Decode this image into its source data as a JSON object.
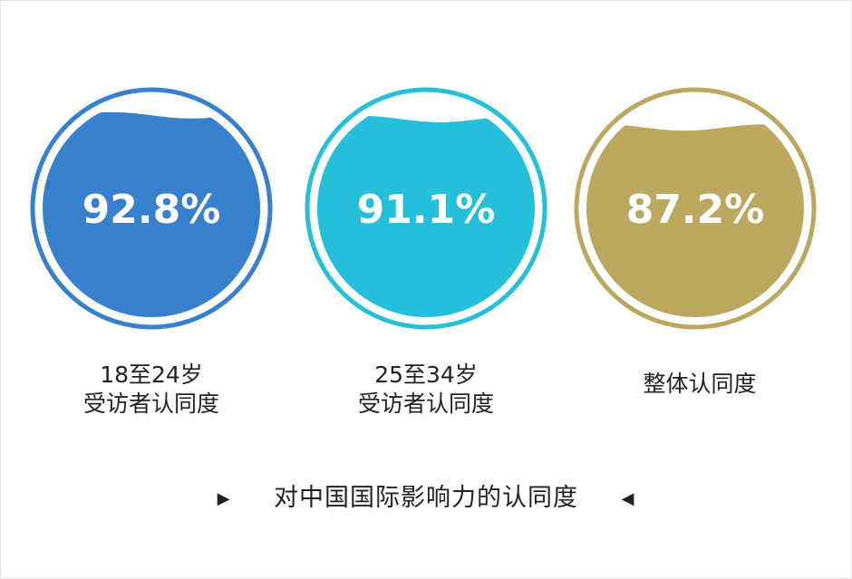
{
  "chart_data": {
    "type": "liquid-gauge",
    "title": "对中国国际影响力的认同度",
    "series": [
      {
        "label_line1": "18至24岁",
        "label_line2": "受访者认同度",
        "value": 92.8,
        "display": "92.8%",
        "color": "#3680cd"
      },
      {
        "label_line1": "25至34岁",
        "label_line2": "受访者认同度",
        "value": 91.1,
        "display": "91.1%",
        "color": "#24c0d9"
      },
      {
        "label_line1": "整体认同度",
        "label_line2": "",
        "value": 87.2,
        "display": "87.2%",
        "color": "#bba75e"
      }
    ]
  },
  "footer": {
    "left_marker": "▶",
    "right_marker": "◀"
  }
}
